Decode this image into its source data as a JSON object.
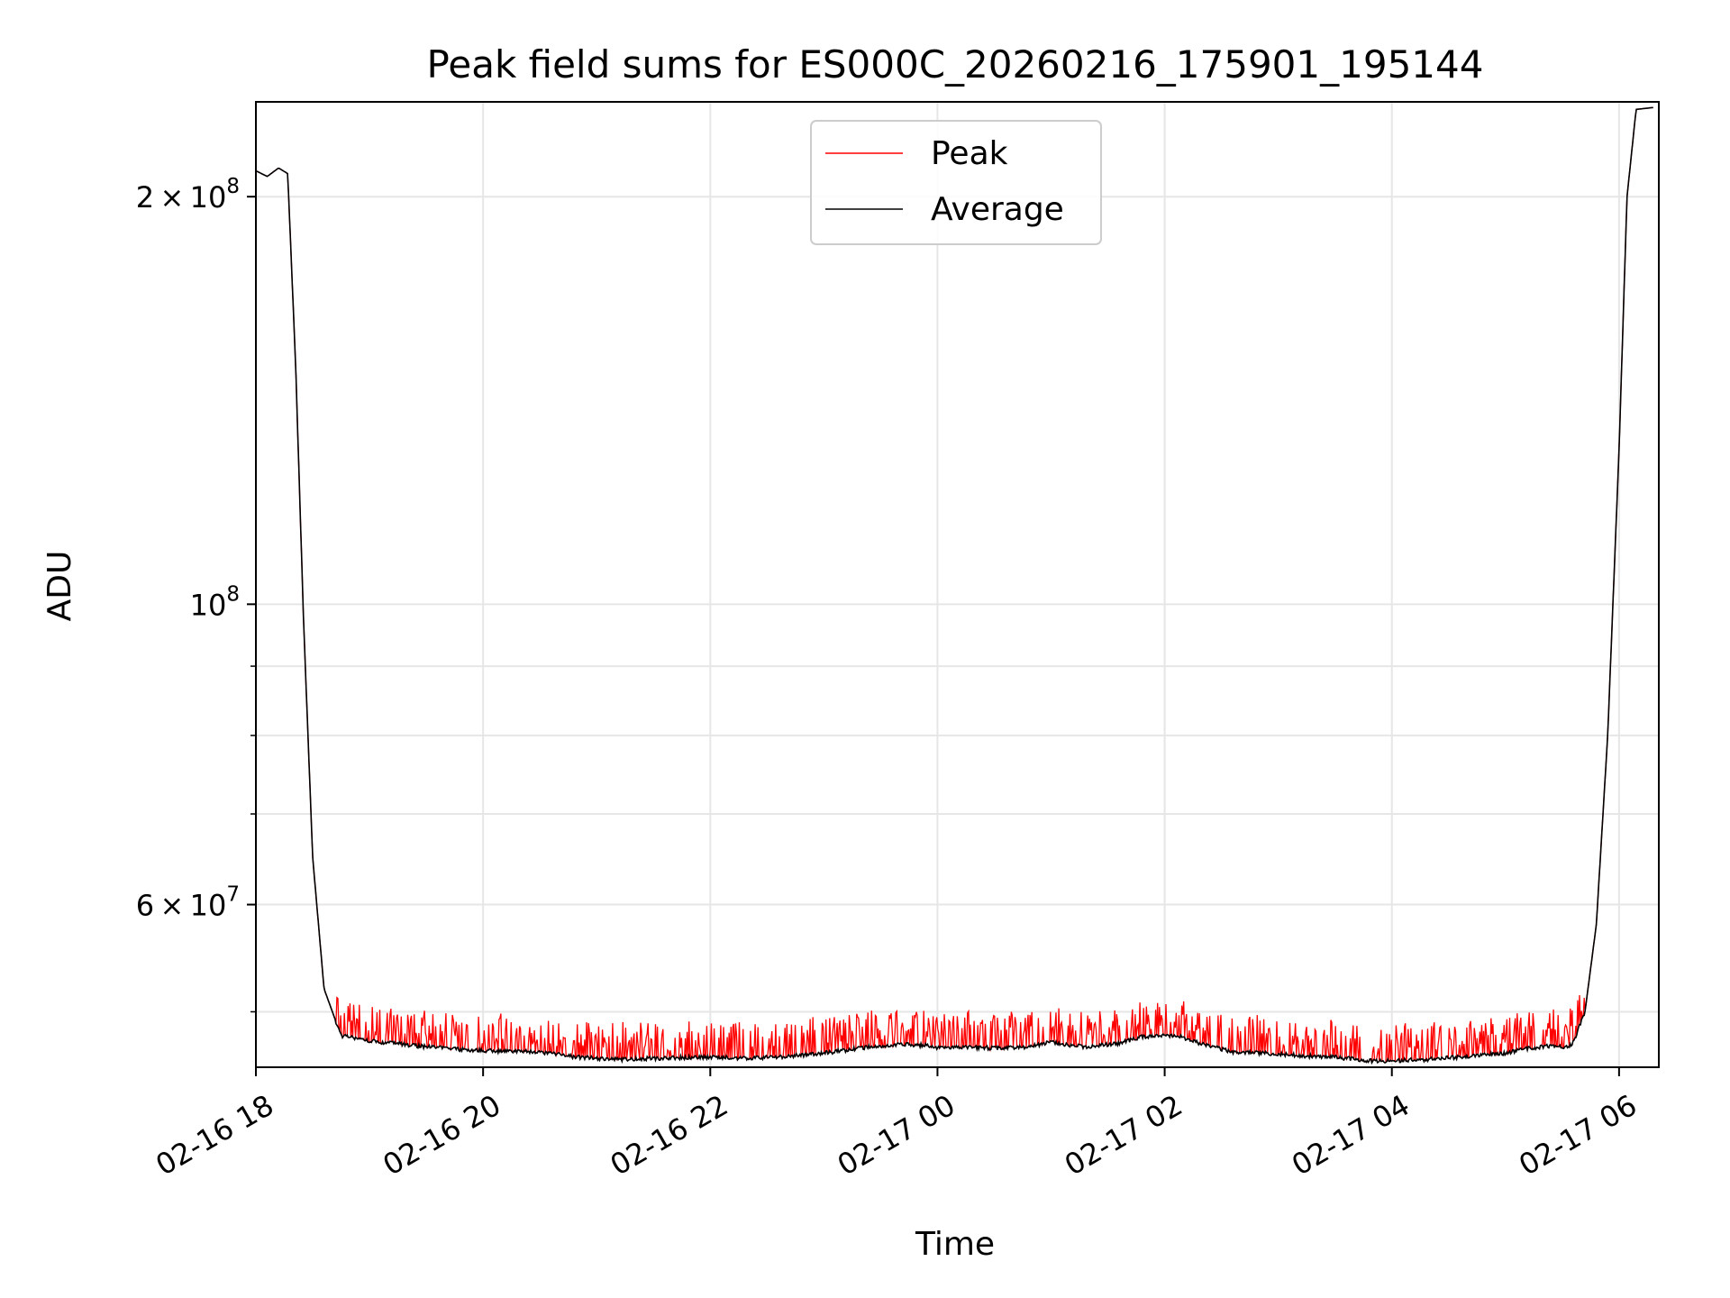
{
  "chart_data": {
    "type": "line",
    "title": "Peak field sums for ES000C_20260216_175901_195144",
    "xlabel": "Time",
    "ylabel": "ADU",
    "yscale": "log",
    "grid": true,
    "legend_position": "top-center",
    "x_range_hours": [
      18.0,
      30.35
    ],
    "ylim": [
      45500000,
      235000000
    ],
    "x_tick_labels": [
      {
        "hour": 18,
        "label": "02-16 18"
      },
      {
        "hour": 20,
        "label": "02-16 20"
      },
      {
        "hour": 22,
        "label": "02-16 22"
      },
      {
        "hour": 24,
        "label": "02-17 00"
      },
      {
        "hour": 26,
        "label": "02-17 02"
      },
      {
        "hour": 28,
        "label": "02-17 04"
      },
      {
        "hour": 30,
        "label": "02-17 06"
      }
    ],
    "y_major_ticks": [
      {
        "value": 60000000,
        "base": "6",
        "times": "×",
        "power": "10",
        "exponent": "7"
      },
      {
        "value": 100000000,
        "base": "",
        "times": "",
        "power": "10",
        "exponent": "8"
      },
      {
        "value": 200000000,
        "base": "2",
        "times": "×",
        "power": "10",
        "exponent": "8"
      }
    ],
    "y_minor_ticks": [
      50000000,
      70000000,
      80000000,
      90000000
    ],
    "colors": {
      "peak": "#ff0000",
      "average": "#000000",
      "grid": "#e6e6e6"
    },
    "series": [
      {
        "name": "Peak",
        "color": "#ff0000",
        "note": "Average plus frequent positive spikes of ~1-3e6 ADU throughout the night",
        "spike_amplitude": 2000000
      },
      {
        "name": "Average",
        "color": "#000000",
        "x_hours": [
          18.0,
          18.1,
          18.2,
          18.28,
          18.35,
          18.42,
          18.5,
          18.6,
          18.75,
          18.9,
          19.0,
          19.2,
          19.5,
          19.8,
          20.0,
          20.5,
          20.8,
          21.0,
          21.2,
          21.5,
          22.0,
          22.3,
          22.6,
          23.0,
          23.4,
          23.7,
          23.9,
          24.0,
          24.2,
          24.5,
          24.8,
          25.0,
          25.1,
          25.3,
          25.6,
          25.8,
          26.0,
          26.15,
          26.3,
          26.6,
          26.9,
          27.2,
          27.5,
          27.8,
          28.0,
          28.3,
          28.6,
          29.0,
          29.2,
          29.4,
          29.55,
          29.6,
          29.7,
          29.8,
          29.9,
          30.0,
          30.07,
          30.15,
          30.35
        ],
        "values": [
          209000000,
          207000000,
          210000000,
          208000000,
          150000000,
          97000000,
          65000000,
          52000000,
          48000000,
          47800000,
          47600000,
          47400000,
          47100000,
          46900000,
          46800000,
          46700000,
          46300000,
          46200000,
          46100000,
          46200000,
          46300000,
          46200000,
          46300000,
          46600000,
          47100000,
          47300000,
          47200000,
          47000000,
          47100000,
          47000000,
          47100000,
          47500000,
          47300000,
          47100000,
          47400000,
          47900000,
          48100000,
          47900000,
          47400000,
          46700000,
          46600000,
          46400000,
          46300000,
          46000000,
          46000000,
          46100000,
          46300000,
          46600000,
          47000000,
          47200000,
          47100000,
          47500000,
          50000000,
          58000000,
          80000000,
          130000000,
          200000000,
          232000000,
          233000000
        ]
      }
    ],
    "legend": [
      {
        "label": "Peak",
        "color": "#ff0000"
      },
      {
        "label": "Average",
        "color": "#000000"
      }
    ]
  }
}
